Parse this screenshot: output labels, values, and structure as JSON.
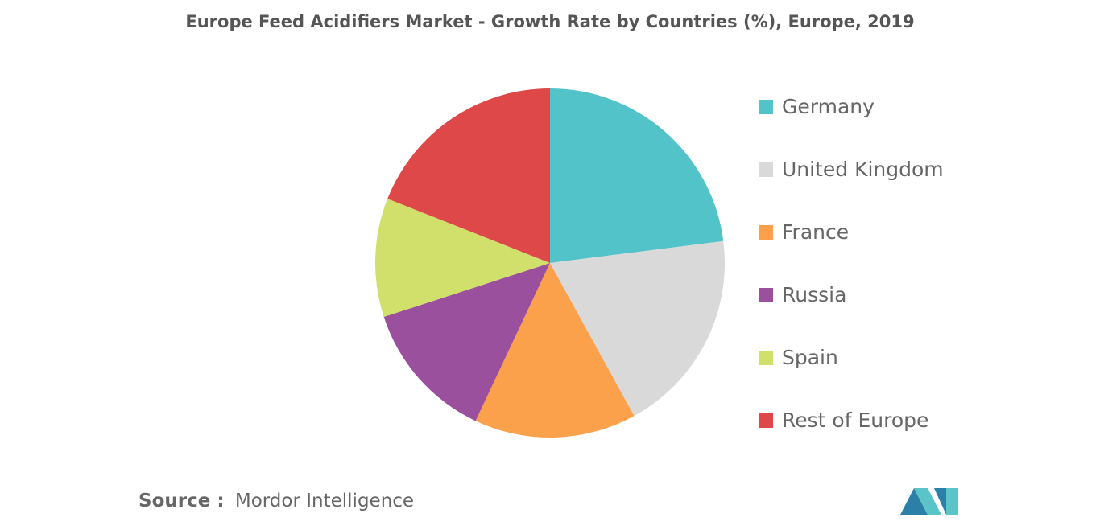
{
  "chart_data": {
    "type": "pie",
    "title": "Europe Feed Acidifiers Market - Growth Rate by Countries (%), Europe, 2019",
    "categories": [
      "Germany",
      "United Kingdom",
      "France",
      "Russia",
      "Spain",
      "Rest of Europe"
    ],
    "values": [
      23,
      19,
      15,
      13,
      11,
      19
    ],
    "colors": [
      "#52c3c9",
      "#d9d9d9",
      "#fba04b",
      "#9b509e",
      "#d1e06a",
      "#df4848"
    ],
    "legend": "right",
    "source_label": "Source :",
    "source": "Mordor Intelligence"
  }
}
